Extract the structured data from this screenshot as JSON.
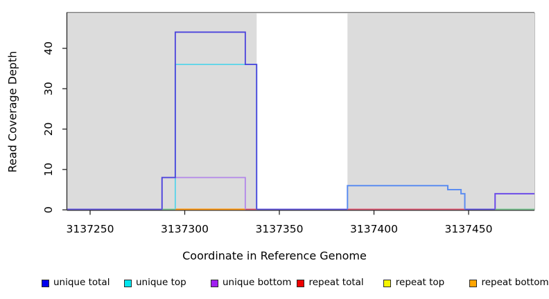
{
  "chart_data": {
    "type": "line",
    "step": true,
    "title": "",
    "xlabel": "Coordinate in Reference Genome",
    "ylabel": "Read Coverage Depth",
    "xlim": [
      3137238,
      3137485
    ],
    "ylim": [
      0,
      48.5
    ],
    "x_ticks": [
      3137250,
      3137300,
      3137350,
      3137400,
      3137450
    ],
    "y_ticks": [
      0,
      10,
      20,
      30,
      40
    ],
    "grid": false,
    "legend_position": "bottom",
    "plot_background": "#ffffff",
    "shaded_region_color": "#dcdcdc",
    "shaded_regions": [
      {
        "from": 3137238,
        "to": 3137338
      },
      {
        "from": 3137386,
        "to": 3137485
      }
    ],
    "legend": [
      {
        "label": "unique total",
        "color": "#0000EE"
      },
      {
        "label": "unique top",
        "color": "#00E5EE"
      },
      {
        "label": "unique bottom",
        "color": "#A020F0"
      },
      {
        "label": "repeat total",
        "color": "#EE0000"
      },
      {
        "label": "repeat top",
        "color": "#F5F500"
      },
      {
        "label": "repeat bottom",
        "color": "#FFA500"
      }
    ],
    "series": [
      {
        "name": "unique total",
        "color": "#0000EE",
        "steps": [
          [
            3137238,
            0
          ],
          [
            3137288,
            8
          ],
          [
            3137295,
            44
          ],
          [
            3137332,
            36
          ],
          [
            3137338,
            0
          ],
          [
            3137386,
            6
          ],
          [
            3137439,
            5
          ],
          [
            3137446,
            4
          ],
          [
            3137448,
            0
          ],
          [
            3137464,
            4
          ],
          [
            3137485,
            4
          ]
        ]
      },
      {
        "name": "unique top",
        "color": "#00E5EE",
        "steps": [
          [
            3137238,
            0
          ],
          [
            3137295,
            36
          ],
          [
            3137338,
            0
          ],
          [
            3137386,
            6
          ],
          [
            3137439,
            5
          ],
          [
            3137446,
            4
          ],
          [
            3137448,
            0
          ],
          [
            3137485,
            0
          ]
        ]
      },
      {
        "name": "unique bottom",
        "color": "#A020F0",
        "steps": [
          [
            3137238,
            0
          ],
          [
            3137288,
            8
          ],
          [
            3137332,
            0
          ],
          [
            3137464,
            4
          ],
          [
            3137485,
            4
          ]
        ]
      },
      {
        "name": "repeat total",
        "color": "#EE0000",
        "steps": [
          [
            3137238,
            0
          ],
          [
            3137485,
            0
          ]
        ]
      },
      {
        "name": "repeat top",
        "color": "#F5F500",
        "steps": [
          [
            3137238,
            0
          ],
          [
            3137485,
            0
          ]
        ]
      },
      {
        "name": "repeat bottom",
        "color": "#FFA500",
        "steps": [
          [
            3137238,
            0
          ],
          [
            3137485,
            0
          ]
        ]
      }
    ],
    "visible_line_segments": [
      {
        "name": "baseline-unique-mix",
        "color": "#6154e2",
        "width": 1.7,
        "pts": [
          [
            3137238,
            0
          ],
          [
            3137288,
            0
          ]
        ]
      },
      {
        "name": "baseline-top-mix",
        "color": "#7cc894",
        "width": 1.7,
        "pts": [
          [
            3137288,
            0
          ],
          [
            3137295,
            0
          ]
        ]
      },
      {
        "name": "baseline-repeat-bottom",
        "color": "#ff9914",
        "width": 2.0,
        "pts": [
          [
            3137295,
            0
          ],
          [
            3137332,
            0
          ]
        ]
      },
      {
        "name": "baseline-repeat-total",
        "color": "#e25672",
        "width": 1.7,
        "pts": [
          [
            3137332,
            0
          ],
          [
            3137338,
            0
          ]
        ]
      },
      {
        "name": "baseline-unique-mix",
        "color": "#6154e2",
        "width": 1.7,
        "pts": [
          [
            3137338,
            0
          ],
          [
            3137386,
            0
          ]
        ]
      },
      {
        "name": "baseline-repeat-total",
        "color": "#e25672",
        "width": 1.7,
        "pts": [
          [
            3137386,
            0
          ],
          [
            3137448,
            0
          ]
        ]
      },
      {
        "name": "baseline-unique-mix",
        "color": "#6154e2",
        "width": 1.7,
        "pts": [
          [
            3137448,
            0
          ],
          [
            3137464,
            0
          ]
        ]
      },
      {
        "name": "baseline-top-mix",
        "color": "#7cc894",
        "width": 1.7,
        "pts": [
          [
            3137464,
            0
          ],
          [
            3137485,
            0
          ]
        ]
      },
      {
        "name": "unique-top-peak",
        "color": "#56d4e9",
        "width": 1.8,
        "pts": [
          [
            3137295,
            0
          ],
          [
            3137295,
            36
          ],
          [
            3137338,
            36
          ],
          [
            3137338,
            0
          ]
        ]
      },
      {
        "name": "unique-bottom-peak",
        "color": "#b286e9",
        "width": 1.8,
        "pts": [
          [
            3137288,
            0
          ],
          [
            3137288,
            8
          ],
          [
            3137332,
            8
          ],
          [
            3137332,
            0
          ]
        ]
      },
      {
        "name": "unique-total-peak",
        "color": "#4a42dc",
        "width": 1.8,
        "pts": [
          [
            3137288,
            0
          ],
          [
            3137288,
            8
          ],
          [
            3137295,
            8
          ],
          [
            3137295,
            44
          ],
          [
            3137332,
            44
          ],
          [
            3137332,
            36
          ],
          [
            3137338,
            36
          ],
          [
            3137338,
            0
          ]
        ]
      },
      {
        "name": "unique-right-block",
        "color": "#5b8cf0",
        "width": 2.0,
        "pts": [
          [
            3137386,
            0
          ],
          [
            3137386,
            6
          ],
          [
            3137439,
            6
          ],
          [
            3137439,
            5
          ],
          [
            3137446,
            5
          ],
          [
            3137446,
            4
          ],
          [
            3137448,
            4
          ],
          [
            3137448,
            0
          ]
        ]
      },
      {
        "name": "unique-far-right",
        "color": "#6b4ae8",
        "width": 2.0,
        "pts": [
          [
            3137464,
            0
          ],
          [
            3137464,
            4
          ],
          [
            3137485,
            4
          ]
        ]
      }
    ]
  }
}
